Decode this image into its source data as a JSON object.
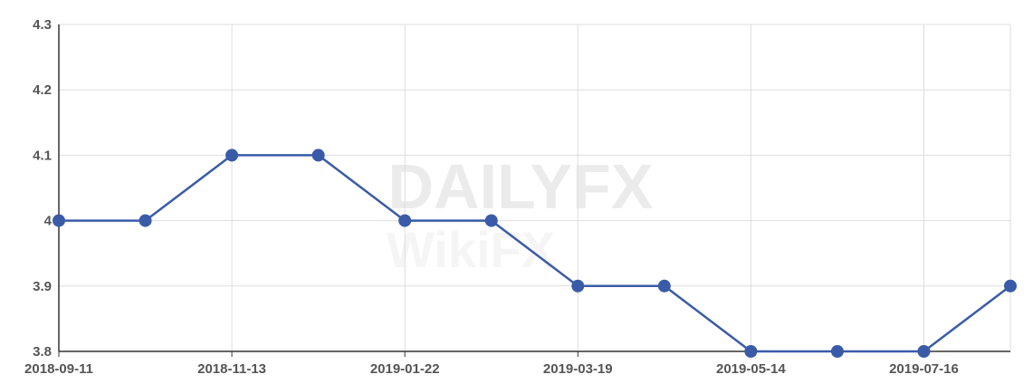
{
  "chart_data": {
    "type": "line",
    "title": "",
    "xlabel": "",
    "ylabel": "",
    "x_tick_labels": [
      "2018-09-11",
      "",
      "2018-11-13",
      "",
      "2019-01-22",
      "",
      "2019-03-19",
      "",
      "2019-05-14",
      "",
      "2019-07-16",
      ""
    ],
    "series": [
      {
        "values": [
          4.0,
          4.0,
          4.1,
          4.1,
          4.0,
          4.0,
          3.9,
          3.9,
          3.8,
          3.8,
          3.8,
          3.9
        ],
        "color": "#3a5ba8"
      }
    ],
    "y_ticks": [
      "3.8",
      "3.9",
      "4",
      "4.1",
      "4.2",
      "4.3"
    ],
    "ylim": [
      3.8,
      4.3
    ],
    "grid": true,
    "legend": "none"
  },
  "watermarks": [
    "DAILYFX",
    "WikiFX"
  ]
}
